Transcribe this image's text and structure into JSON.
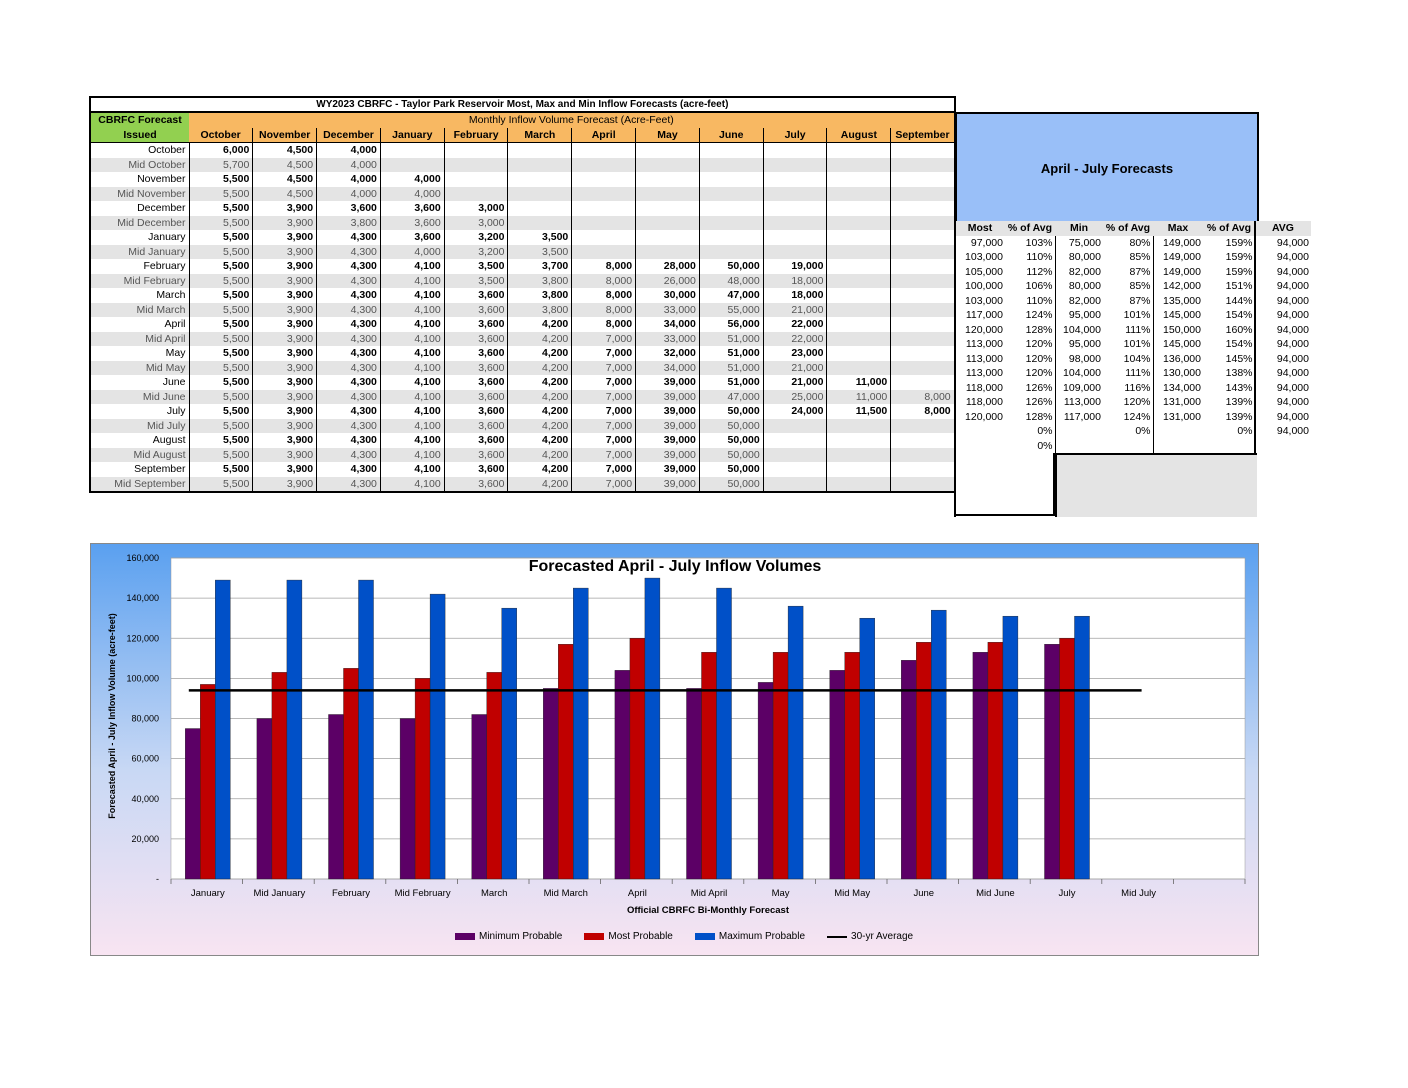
{
  "table": {
    "title": "WY2023 CBRFC - Taylor Park Reservoir Most, Max and Min Inflow Forecasts (acre-feet)",
    "issued_header_1": "CBRFC Forecast",
    "issued_header_2": "Issued",
    "group_header": "Monthly Inflow Volume Forecast (Acre-Feet)",
    "months": [
      "October",
      "November",
      "December",
      "January",
      "February",
      "March",
      "April",
      "May",
      "June",
      "July",
      "August",
      "September"
    ],
    "rows": [
      {
        "label": "October",
        "bold": true,
        "vals": [
          "6,000",
          "4,500",
          "4,000",
          "",
          "",
          "",
          "",
          "",
          "",
          "",
          "",
          ""
        ]
      },
      {
        "label": "Mid October",
        "bold": false,
        "vals": [
          "5,700",
          "4,500",
          "4,000",
          "",
          "",
          "",
          "",
          "",
          "",
          "",
          "",
          ""
        ]
      },
      {
        "label": "November",
        "bold": true,
        "vals": [
          "5,500",
          "4,500",
          "4,000",
          "4,000",
          "",
          "",
          "",
          "",
          "",
          "",
          "",
          ""
        ]
      },
      {
        "label": "Mid November",
        "bold": false,
        "vals": [
          "5,500",
          "4,500",
          "4,000",
          "4,000",
          "",
          "",
          "",
          "",
          "",
          "",
          "",
          ""
        ]
      },
      {
        "label": "December",
        "bold": true,
        "vals": [
          "5,500",
          "3,900",
          "3,600",
          "3,600",
          "3,000",
          "",
          "",
          "",
          "",
          "",
          "",
          ""
        ]
      },
      {
        "label": "Mid December",
        "bold": false,
        "vals": [
          "5,500",
          "3,900",
          "3,800",
          "3,600",
          "3,000",
          "",
          "",
          "",
          "",
          "",
          "",
          ""
        ]
      },
      {
        "label": "January",
        "bold": true,
        "vals": [
          "5,500",
          "3,900",
          "4,300",
          "3,600",
          "3,200",
          "3,500",
          "",
          "",
          "",
          "",
          "",
          ""
        ]
      },
      {
        "label": "Mid January",
        "bold": false,
        "vals": [
          "5,500",
          "3,900",
          "4,300",
          "4,000",
          "3,200",
          "3,500",
          "",
          "",
          "",
          "",
          "",
          ""
        ]
      },
      {
        "label": "February",
        "bold": true,
        "vals": [
          "5,500",
          "3,900",
          "4,300",
          "4,100",
          "3,500",
          "3,700",
          "8,000",
          "28,000",
          "50,000",
          "19,000",
          "",
          ""
        ]
      },
      {
        "label": "Mid February",
        "bold": false,
        "vals": [
          "5,500",
          "3,900",
          "4,300",
          "4,100",
          "3,500",
          "3,800",
          "8,000",
          "26,000",
          "48,000",
          "18,000",
          "",
          ""
        ]
      },
      {
        "label": "March",
        "bold": true,
        "vals": [
          "5,500",
          "3,900",
          "4,300",
          "4,100",
          "3,600",
          "3,800",
          "8,000",
          "30,000",
          "47,000",
          "18,000",
          "",
          ""
        ]
      },
      {
        "label": "Mid March",
        "bold": false,
        "vals": [
          "5,500",
          "3,900",
          "4,300",
          "4,100",
          "3,600",
          "3,800",
          "8,000",
          "33,000",
          "55,000",
          "21,000",
          "",
          ""
        ]
      },
      {
        "label": "April",
        "bold": true,
        "vals": [
          "5,500",
          "3,900",
          "4,300",
          "4,100",
          "3,600",
          "4,200",
          "8,000",
          "34,000",
          "56,000",
          "22,000",
          "",
          ""
        ]
      },
      {
        "label": "Mid April",
        "bold": false,
        "vals": [
          "5,500",
          "3,900",
          "4,300",
          "4,100",
          "3,600",
          "4,200",
          "7,000",
          "33,000",
          "51,000",
          "22,000",
          "",
          ""
        ]
      },
      {
        "label": "May",
        "bold": true,
        "vals": [
          "5,500",
          "3,900",
          "4,300",
          "4,100",
          "3,600",
          "4,200",
          "7,000",
          "32,000",
          "51,000",
          "23,000",
          "",
          ""
        ]
      },
      {
        "label": "Mid May",
        "bold": false,
        "vals": [
          "5,500",
          "3,900",
          "4,300",
          "4,100",
          "3,600",
          "4,200",
          "7,000",
          "34,000",
          "51,000",
          "21,000",
          "",
          ""
        ]
      },
      {
        "label": "June",
        "bold": true,
        "vals": [
          "5,500",
          "3,900",
          "4,300",
          "4,100",
          "3,600",
          "4,200",
          "7,000",
          "39,000",
          "51,000",
          "21,000",
          "11,000",
          ""
        ]
      },
      {
        "label": "Mid June",
        "bold": false,
        "vals": [
          "5,500",
          "3,900",
          "4,300",
          "4,100",
          "3,600",
          "4,200",
          "7,000",
          "39,000",
          "47,000",
          "25,000",
          "11,000",
          "8,000"
        ]
      },
      {
        "label": "July",
        "bold": true,
        "vals": [
          "5,500",
          "3,900",
          "4,300",
          "4,100",
          "3,600",
          "4,200",
          "7,000",
          "39,000",
          "50,000",
          "24,000",
          "11,500",
          "8,000"
        ]
      },
      {
        "label": "Mid July",
        "bold": false,
        "vals": [
          "5,500",
          "3,900",
          "4,300",
          "4,100",
          "3,600",
          "4,200",
          "7,000",
          "39,000",
          "50,000",
          "",
          "",
          ""
        ]
      },
      {
        "label": "August",
        "bold": true,
        "vals": [
          "5,500",
          "3,900",
          "4,300",
          "4,100",
          "3,600",
          "4,200",
          "7,000",
          "39,000",
          "50,000",
          "",
          "",
          ""
        ]
      },
      {
        "label": "Mid August",
        "bold": false,
        "vals": [
          "5,500",
          "3,900",
          "4,300",
          "4,100",
          "3,600",
          "4,200",
          "7,000",
          "39,000",
          "50,000",
          "",
          "",
          ""
        ]
      },
      {
        "label": "September",
        "bold": true,
        "vals": [
          "5,500",
          "3,900",
          "4,300",
          "4,100",
          "3,600",
          "4,200",
          "7,000",
          "39,000",
          "50,000",
          "",
          "",
          ""
        ]
      },
      {
        "label": "Mid September",
        "bold": false,
        "vals": [
          "5,500",
          "3,900",
          "4,300",
          "4,100",
          "3,600",
          "4,200",
          "7,000",
          "39,000",
          "50,000",
          "",
          "",
          ""
        ]
      }
    ]
  },
  "april_july": {
    "title": "April - July Forecasts",
    "headers": [
      "Most",
      "% of Avg",
      "Min",
      "% of Avg",
      "Max",
      "% of Avg",
      "AVG"
    ],
    "rows": [
      [
        "97,000",
        "103%",
        "75,000",
        "80%",
        "149,000",
        "159%",
        "94,000"
      ],
      [
        "103,000",
        "110%",
        "80,000",
        "85%",
        "149,000",
        "159%",
        "94,000"
      ],
      [
        "105,000",
        "112%",
        "82,000",
        "87%",
        "149,000",
        "159%",
        "94,000"
      ],
      [
        "100,000",
        "106%",
        "80,000",
        "85%",
        "142,000",
        "151%",
        "94,000"
      ],
      [
        "103,000",
        "110%",
        "82,000",
        "87%",
        "135,000",
        "144%",
        "94,000"
      ],
      [
        "117,000",
        "124%",
        "95,000",
        "101%",
        "145,000",
        "154%",
        "94,000"
      ],
      [
        "120,000",
        "128%",
        "104,000",
        "111%",
        "150,000",
        "160%",
        "94,000"
      ],
      [
        "113,000",
        "120%",
        "95,000",
        "101%",
        "145,000",
        "154%",
        "94,000"
      ],
      [
        "113,000",
        "120%",
        "98,000",
        "104%",
        "136,000",
        "145%",
        "94,000"
      ],
      [
        "113,000",
        "120%",
        "104,000",
        "111%",
        "130,000",
        "138%",
        "94,000"
      ],
      [
        "118,000",
        "126%",
        "109,000",
        "116%",
        "134,000",
        "143%",
        "94,000"
      ],
      [
        "118,000",
        "126%",
        "113,000",
        "120%",
        "131,000",
        "139%",
        "94,000"
      ],
      [
        "120,000",
        "128%",
        "117,000",
        "124%",
        "131,000",
        "139%",
        "94,000"
      ],
      [
        "",
        "0%",
        "",
        "0%",
        "",
        "0%",
        "94,000"
      ],
      [
        "",
        "0%",
        "",
        "",
        "",
        "",
        ""
      ]
    ]
  },
  "chart_data": {
    "type": "bar",
    "title": "Forecasted April - July Inflow Volumes",
    "xlabel": "Official CBRFC Bi-Monthly Forecast",
    "ylabel": "Forecasted April - July Inflow Volume (acre-feet)",
    "ylim": [
      0,
      160000
    ],
    "yticks": [
      "-",
      "20,000",
      "40,000",
      "60,000",
      "80,000",
      "100,000",
      "120,000",
      "140,000",
      "160,000"
    ],
    "ytick_values": [
      0,
      20000,
      40000,
      60000,
      80000,
      100000,
      120000,
      140000,
      160000
    ],
    "categories": [
      "January",
      "Mid January",
      "February",
      "Mid February",
      "March",
      "Mid March",
      "April",
      "Mid April",
      "May",
      "Mid May",
      "June",
      "Mid June",
      "July",
      "Mid July"
    ],
    "series": [
      {
        "name": "Minimum Probable",
        "color": "#5c0066",
        "values": [
          75000,
          80000,
          82000,
          80000,
          82000,
          95000,
          104000,
          95000,
          98000,
          104000,
          109000,
          113000,
          117000,
          null
        ]
      },
      {
        "name": "Most Probable",
        "color": "#c00000",
        "values": [
          97000,
          103000,
          105000,
          100000,
          103000,
          117000,
          120000,
          113000,
          113000,
          113000,
          118000,
          118000,
          120000,
          null
        ]
      },
      {
        "name": "Maximum Probable",
        "color": "#0050c8",
        "values": [
          149000,
          149000,
          149000,
          142000,
          135000,
          145000,
          150000,
          145000,
          136000,
          130000,
          134000,
          131000,
          131000,
          null
        ]
      }
    ],
    "average": {
      "name": "30-yr Average",
      "value": 94000
    },
    "legend_position": "bottom",
    "grid": true
  }
}
